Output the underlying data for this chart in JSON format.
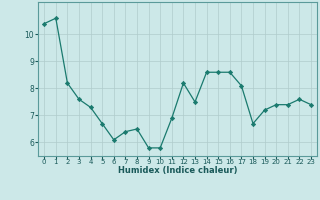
{
  "x": [
    0,
    1,
    2,
    3,
    4,
    5,
    6,
    7,
    8,
    9,
    10,
    11,
    12,
    13,
    14,
    15,
    16,
    17,
    18,
    19,
    20,
    21,
    22,
    23
  ],
  "y": [
    10.4,
    10.6,
    8.2,
    7.6,
    7.3,
    6.7,
    6.1,
    6.4,
    6.5,
    5.8,
    5.8,
    6.9,
    8.2,
    7.5,
    8.6,
    8.6,
    8.6,
    8.1,
    6.7,
    7.2,
    7.4,
    7.4,
    7.6,
    7.4
  ],
  "xlabel": "Humidex (Indice chaleur)",
  "xlim": [
    -0.5,
    23.5
  ],
  "ylim": [
    5.5,
    11.2
  ],
  "yticks": [
    6,
    7,
    8,
    9,
    10
  ],
  "xticks": [
    0,
    1,
    2,
    3,
    4,
    5,
    6,
    7,
    8,
    9,
    10,
    11,
    12,
    13,
    14,
    15,
    16,
    17,
    18,
    19,
    20,
    21,
    22,
    23
  ],
  "line_color": "#1a7a6e",
  "marker_color": "#1a7a6e",
  "bg_color": "#cce8e8",
  "grid_color": "#b0cccc",
  "tick_color": "#1a5a5a",
  "spine_color": "#5a9a9a"
}
